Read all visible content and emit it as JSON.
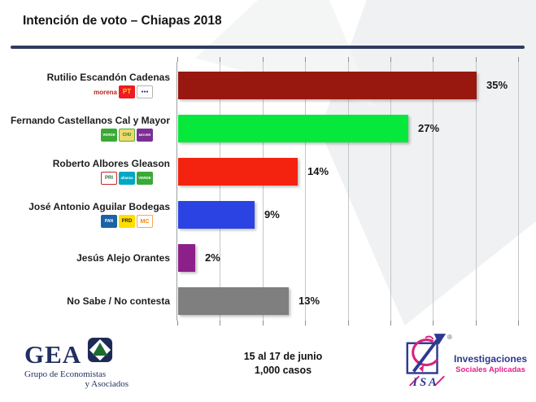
{
  "slide": {
    "title": "Intención de voto – Chiapas 2018"
  },
  "chart_data": {
    "type": "bar",
    "orientation": "horizontal",
    "title": "Intención de voto – Chiapas 2018",
    "categories": [
      "Rutilio Escandón Cadenas",
      "Fernando Castellanos Cal y Mayor",
      "Roberto Albores Gleason",
      "José Antonio Aguilar Bodegas",
      "Jesús Alejo Orantes",
      "No Sabe / No contesta"
    ],
    "values": [
      35,
      27,
      14,
      9,
      2,
      13
    ],
    "value_labels": [
      "35%",
      "27%",
      "14%",
      "9%",
      "2%",
      "13%"
    ],
    "bar_colors": [
      "#98170e",
      "#06e93c",
      "#f4230f",
      "#2b43e2",
      "#8c2088",
      "#7f7f7f"
    ],
    "xlim": [
      0,
      41
    ],
    "gridline_step": 5,
    "grid": true,
    "legend": false,
    "xlabel": "",
    "ylabel": ""
  },
  "rows": [
    {
      "name": "Rutilio Escandón Cadenas",
      "value": 35,
      "label": "35%",
      "color": "#98170e",
      "parties": [
        {
          "id": "morena-logo",
          "style": "text",
          "label": "morena",
          "fg": "#b5261e"
        },
        {
          "id": "pt-logo",
          "label": "PT",
          "bg": "#ed1c24",
          "fg": "#ffd200",
          "fs": "8px"
        },
        {
          "id": "encuentro-social-logo",
          "label": "●●●",
          "bg": "#ffffff",
          "fg": "#27348b",
          "border": "#b5b5b5",
          "fs": "5px"
        }
      ]
    },
    {
      "name": "Fernando Castellanos Cal y Mayor",
      "value": 27,
      "label": "27%",
      "color": "#06e93c",
      "parties": [
        {
          "id": "pvem-logo",
          "label": "VERDE",
          "bg": "#3aa935",
          "fg": "#ffffff",
          "fs": "4.5px"
        },
        {
          "id": "chiapas-unido-logo",
          "label": "CHU",
          "bg": "#eeda6a",
          "fg": "#1c7a33",
          "border": "#58a83c",
          "fs": "5px"
        },
        {
          "id": "mover-a-chiapas-logo",
          "label": "MOVER",
          "bg": "#7b2f92",
          "fg": "#ffffff",
          "fs": "4px"
        }
      ]
    },
    {
      "name": "Roberto Albores Gleason",
      "value": 14,
      "label": "14%",
      "color": "#f4230f",
      "parties": [
        {
          "id": "pri-logo",
          "label": "PRI",
          "bg": "#ffffff",
          "fg": "#2f6f3e",
          "border": "#c0272d",
          "fs": "6px"
        },
        {
          "id": "nueva-alianza-logo",
          "label": "alianza",
          "bg": "#00a8c6",
          "fg": "#ffffff",
          "fs": "4.5px"
        },
        {
          "id": "pvem-logo",
          "label": "VERDE",
          "bg": "#3aa935",
          "fg": "#ffffff",
          "fs": "4.5px"
        }
      ]
    },
    {
      "name": "José Antonio Aguilar Bodegas",
      "value": 9,
      "label": "9%",
      "color": "#2b43e2",
      "parties": [
        {
          "id": "pan-logo",
          "label": "PAN",
          "bg": "#1b63a5",
          "fg": "#ffffff",
          "fs": "5px"
        },
        {
          "id": "prd-logo",
          "label": "PRD",
          "bg": "#ffde00",
          "fg": "#231f20",
          "fs": "6px"
        },
        {
          "id": "mc-logo",
          "label": "MC",
          "bg": "#ffffff",
          "fg": "#ff8300",
          "border": "#f5a84f",
          "fs": "7px"
        }
      ]
    },
    {
      "name": "Jesús Alejo Orantes",
      "value": 2,
      "label": "2%",
      "color": "#8c2088",
      "parties": []
    },
    {
      "name": "No Sabe / No contesta",
      "value": 13,
      "label": "13%",
      "color": "#7f7f7f",
      "parties": []
    }
  ],
  "footer": {
    "gea": {
      "acronym": "GEA",
      "line1": "Grupo de Economistas",
      "line2": "y Asociados"
    },
    "fieldwork": {
      "line1": "15 al 17 de junio",
      "line2": "1,000 casos"
    },
    "isa": {
      "acronym": "ISA",
      "registered": "®",
      "line1": "Investigaciones",
      "line2": "Sociales Aplicadas"
    }
  }
}
